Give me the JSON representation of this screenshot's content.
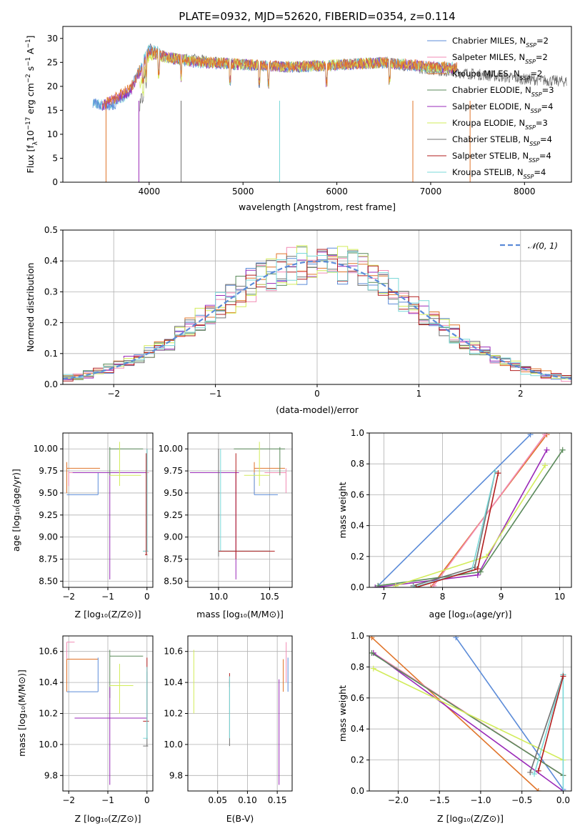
{
  "title": "PLATE=0932, MJD=52620, FIBERID=0354, z=0.114",
  "colors": {
    "chabrier_miles": "#5b8bd8",
    "salpeter_miles": "#f28bb4",
    "kroupa_miles": "#e0742a",
    "chabrier_elodie": "#5a8a5a",
    "salpeter_elodie": "#9a2ab8",
    "kroupa_elodie": "#d2ec5a",
    "chabrier_stelib": "#707070",
    "salpeter_stelib": "#b21e1e",
    "kroupa_stelib": "#7ad8d8"
  },
  "chart_data": [
    {
      "id": "spectrum",
      "type": "line",
      "title": "PLATE=0932, MJD=52620, FIBERID=0354, z=0.114",
      "xlabel": "wavelength [Angstrom, rest frame]",
      "ylabel": "Flux [fλ10⁻¹⁷ erg cm⁻² s⁻¹ A⁻¹]",
      "xlim": [
        3080,
        8500
      ],
      "ylim": [
        0,
        32.5
      ],
      "xticks": [
        4000,
        5000,
        6000,
        7000,
        8000
      ],
      "yticks": [
        0,
        5,
        10,
        15,
        20,
        25,
        30
      ],
      "legend_position": "top-right",
      "legend": [
        {
          "label": "Chabrier MILES, N",
          "sub": "SSP",
          "suffix": "=2",
          "color_key": "chabrier_miles"
        },
        {
          "label": "Salpeter MILES, N",
          "sub": "SSP",
          "suffix": "=2",
          "color_key": "salpeter_miles"
        },
        {
          "label": "Kroupa MILES, N",
          "sub": "SSP",
          "suffix": "=2",
          "color_key": "kroupa_miles"
        },
        {
          "label": "Chabrier ELODIE, N",
          "sub": "SSP",
          "suffix": "=3",
          "color_key": "chabrier_elodie"
        },
        {
          "label": "Salpeter ELODIE, N",
          "sub": "SSP",
          "suffix": "=4",
          "color_key": "salpeter_elodie"
        },
        {
          "label": "Kroupa ELODIE, N",
          "sub": "SSP",
          "suffix": "=3",
          "color_key": "kroupa_elodie"
        },
        {
          "label": "Chabrier STELIB, N",
          "sub": "SSP",
          "suffix": "=4",
          "color_key": "chabrier_stelib"
        },
        {
          "label": "Salpeter STELIB, N",
          "sub": "SSP",
          "suffix": "=4",
          "color_key": "salpeter_stelib"
        },
        {
          "label": "Kroupa STELIB, N",
          "sub": "SSP",
          "suffix": "=4",
          "color_key": "kroupa_stelib"
        }
      ],
      "series": [
        {
          "color_key": "chabrier_stelib",
          "range": [
            3900,
            8450
          ],
          "x": [
            3900,
            4000,
            4200,
            4500,
            5000,
            5500,
            6000,
            6500,
            7000,
            7500,
            8000,
            8450
          ],
          "y": [
            16,
            28,
            26,
            25.5,
            24.5,
            24,
            24.5,
            25,
            23.5,
            22.5,
            21.5,
            21
          ]
        },
        {
          "color_key": "kroupa_stelib",
          "range": [
            3400,
            7280
          ],
          "x": [
            3400,
            3600,
            3800,
            4000,
            4200,
            4500,
            5000,
            5500,
            6000,
            6500,
            7000,
            7280
          ],
          "y": [
            16.5,
            16,
            19,
            28,
            26,
            25,
            24.5,
            24,
            24.5,
            25,
            24,
            24
          ]
        },
        {
          "color_key": "chabrier_miles",
          "range": [
            3400,
            7280
          ],
          "x": [
            3400,
            3600,
            3800,
            4000,
            4200,
            4500,
            5000,
            5500,
            6000,
            6500,
            7000,
            7280
          ],
          "y": [
            16.3,
            15.8,
            19.3,
            27.7,
            25.8,
            25,
            24.5,
            24,
            24.4,
            24.9,
            24,
            23.9
          ]
        },
        {
          "color_key": "salpeter_elodie",
          "range": [
            3500,
            7280
          ],
          "x": [
            3500,
            3800,
            4000,
            4200,
            4500,
            5000,
            5500,
            6000,
            6500,
            7000,
            7280
          ],
          "y": [
            16,
            19,
            27,
            26,
            25,
            24.5,
            24,
            24.4,
            25,
            24,
            23.8
          ]
        },
        {
          "color_key": "kroupa_elodie",
          "range": [
            3900,
            7280
          ],
          "x": [
            3900,
            4000,
            4200,
            4500,
            5000,
            5500,
            6000,
            6500,
            7000,
            7280
          ],
          "y": [
            20,
            26.5,
            26,
            25.2,
            24.5,
            24,
            24.5,
            25,
            24,
            23.8
          ]
        },
        {
          "color_key": "kroupa_miles",
          "range": [
            3500,
            7280
          ],
          "x": [
            3500,
            3800,
            4000,
            4200,
            4500,
            5000,
            5500,
            6000,
            6500,
            7000,
            7280
          ],
          "y": [
            16,
            19.5,
            27.5,
            26,
            25.2,
            24.6,
            24.1,
            24.5,
            25,
            24.2,
            24
          ]
        }
      ],
      "dips": [
        {
          "x": 3540,
          "color_key": "kroupa_miles"
        },
        {
          "x": 3890,
          "color_key": "salpeter_elodie"
        },
        {
          "x": 4340,
          "color_key": "chabrier_stelib"
        },
        {
          "x": 5390,
          "color_key": "kroupa_stelib"
        },
        {
          "x": 6810,
          "color_key": "kroupa_miles"
        },
        {
          "x": 7420,
          "color_key": "kroupa_miles"
        }
      ]
    },
    {
      "id": "residuals",
      "type": "bar",
      "xlabel": "(data-model)/error",
      "ylabel": "Normed distribution",
      "xlim": [
        -2.5,
        2.5
      ],
      "ylim": [
        0,
        0.5
      ],
      "xticks": [
        -2,
        -1,
        0,
        1,
        2
      ],
      "yticks": [
        0.0,
        0.1,
        0.2,
        0.3,
        0.4,
        0.5
      ],
      "grid": true,
      "legend_position": "top-right",
      "legend": [
        {
          "label": "𝒩(0, 1)",
          "color_key": "chabrier_miles",
          "style": "dashed"
        }
      ],
      "bins": {
        "start": -2.5,
        "width": 0.1,
        "count": 50
      },
      "reference_curve": {
        "type": "normal",
        "mean": 0,
        "sigma": 1
      }
    },
    {
      "id": "age-vs-z",
      "type": "scatter",
      "xlabel": "Z [log₁₀(Z/Z⊙)]",
      "ylabel": "age  [log₁₀(age/yr)]",
      "xlim": [
        -2.15,
        0.15
      ],
      "ylim": [
        8.43,
        10.18
      ],
      "xticks": [
        -2,
        -1,
        0
      ],
      "yticks": [
        8.5,
        8.75,
        9.0,
        9.25,
        9.5,
        9.75,
        10.0
      ],
      "grid": true
    },
    {
      "id": "age-vs-mass",
      "type": "scatter",
      "xlabel": "mass [log₁₀(M/M⊙)]",
      "xlim": [
        9.7,
        10.72
      ],
      "ylim": [
        8.43,
        10.18
      ],
      "xticks": [
        10.0,
        10.5
      ],
      "yticks": [
        8.5,
        8.75,
        9.0,
        9.25,
        9.5,
        9.75,
        10.0
      ],
      "grid": true
    },
    {
      "id": "weight-vs-age",
      "type": "line",
      "xlabel": "age  [log₁₀(age/yr)]",
      "ylabel": "mass weight",
      "xlim": [
        6.75,
        10.2
      ],
      "ylim": [
        0,
        1
      ],
      "xticks": [
        7,
        8,
        9,
        10
      ],
      "yticks": [
        0.0,
        0.2,
        0.4,
        0.6,
        0.8,
        1.0
      ],
      "grid": true,
      "series": [
        {
          "color_key": "chabrier_miles",
          "x": [
            6.9,
            9.5
          ],
          "y": [
            0.01,
            0.99
          ]
        },
        {
          "color_key": "kroupa_miles",
          "x": [
            7.8,
            9.78
          ],
          "y": [
            0.0,
            0.99
          ]
        },
        {
          "color_key": "salpeter_miles",
          "x": [
            7.85,
            9.75
          ],
          "y": [
            0.01,
            0.99
          ]
        },
        {
          "color_key": "salpeter_elodie",
          "x": [
            6.85,
            8.6,
            9.78
          ],
          "y": [
            0.0,
            0.08,
            0.89
          ]
        },
        {
          "color_key": "chabrier_elodie",
          "x": [
            6.9,
            8.65,
            10.05
          ],
          "y": [
            0.01,
            0.1,
            0.89
          ]
        },
        {
          "color_key": "kroupa_elodie",
          "x": [
            7.2,
            8.75,
            9.75
          ],
          "y": [
            0.01,
            0.2,
            0.79
          ]
        },
        {
          "color_key": "chabrier_stelib",
          "x": [
            7.5,
            8.55,
            8.9
          ],
          "y": [
            0.01,
            0.13,
            0.75
          ]
        },
        {
          "color_key": "kroupa_stelib",
          "x": [
            7.5,
            8.5,
            8.9
          ],
          "y": [
            0.0,
            0.11,
            0.75
          ]
        },
        {
          "color_key": "salpeter_stelib",
          "x": [
            7.55,
            8.6,
            8.95
          ],
          "y": [
            0.0,
            0.12,
            0.74
          ]
        }
      ]
    },
    {
      "id": "mass-vs-z",
      "type": "scatter",
      "xlabel": "Z [log₁₀(Z/Z⊙)]",
      "ylabel": "mass [log₁₀(M/M⊙)]",
      "xlim": [
        -2.15,
        0.15
      ],
      "ylim": [
        9.7,
        10.7
      ],
      "xticks": [
        -2,
        -1,
        0
      ],
      "yticks": [
        9.8,
        10.0,
        10.2,
        10.4,
        10.6
      ],
      "grid": true
    },
    {
      "id": "mass-vs-ebv",
      "type": "scatter",
      "xlabel": "E(B-V)",
      "xlim": [
        0.0,
        0.175
      ],
      "ylim": [
        9.7,
        10.7
      ],
      "xticks": [
        0.05,
        0.1,
        0.15
      ],
      "yticks": [
        9.8,
        10.0,
        10.2,
        10.4,
        10.6
      ],
      "grid": true
    },
    {
      "id": "weight-vs-z",
      "type": "line",
      "xlabel": "Z [log₁₀(Z/Z⊙)]",
      "ylabel": "mass weight",
      "xlim": [
        -2.35,
        0.1
      ],
      "ylim": [
        0,
        1
      ],
      "xticks": [
        -2.0,
        -1.5,
        -1.0,
        -0.5,
        0.0
      ],
      "yticks": [
        0.0,
        0.2,
        0.4,
        0.6,
        0.8,
        1.0
      ],
      "grid": true,
      "series": [
        {
          "color_key": "chabrier_miles",
          "x": [
            -1.3,
            0.0
          ],
          "y": [
            0.99,
            0.01
          ]
        },
        {
          "color_key": "kroupa_miles",
          "x": [
            -2.32,
            -0.3
          ],
          "y": [
            0.99,
            0.0
          ]
        },
        {
          "color_key": "salpeter_miles",
          "x": [
            -2.3,
            0.0
          ],
          "y": [
            0.89,
            0.1
          ]
        },
        {
          "color_key": "salpeter_elodie",
          "x": [
            -2.3,
            0.0
          ],
          "y": [
            0.89,
            0.0
          ]
        },
        {
          "color_key": "chabrier_elodie",
          "x": [
            -2.32,
            0.0
          ],
          "y": [
            0.89,
            0.1
          ]
        },
        {
          "color_key": "kroupa_elodie",
          "x": [
            -2.3,
            0.0
          ],
          "y": [
            0.79,
            0.2
          ]
        },
        {
          "color_key": "chabrier_stelib",
          "x": [
            -0.4,
            0.0
          ],
          "y": [
            0.12,
            0.75
          ]
        },
        {
          "color_key": "kroupa_stelib",
          "x": [
            -0.35,
            0.0,
            0.0
          ],
          "y": [
            0.11,
            0.75,
            0.0
          ]
        },
        {
          "color_key": "salpeter_stelib",
          "x": [
            -0.3,
            0.0
          ],
          "y": [
            0.13,
            0.74
          ]
        }
      ]
    }
  ]
}
